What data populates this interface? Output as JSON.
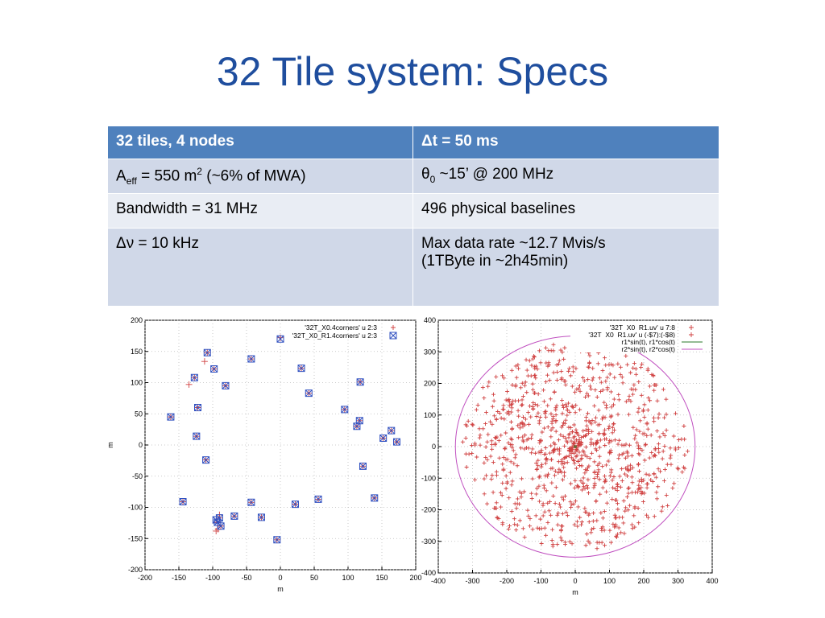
{
  "title": "32 Tile system: Specs",
  "table": {
    "rows": [
      [
        "32 tiles, 4 nodes",
        "Δt = 50 ms"
      ],
      [
        "A",
        "eff",
        " = 550 m",
        "2",
        " (~6% of MWA)",
        "θ",
        "0",
        " ~15’ @ 200 MHz"
      ],
      [
        "Bandwidth = 31 MHz",
        "496 physical baselines"
      ],
      [
        "Δν = 10 kHz",
        "Max data rate ~12.7 Mvis/s",
        "(1TByte in ~2h45min)"
      ]
    ]
  },
  "chart_data": [
    {
      "type": "scatter",
      "xlabel": "m",
      "ylabel": "m",
      "xlim": [
        -200,
        200
      ],
      "ylim": [
        -200,
        200
      ],
      "xticks": [
        -200,
        -150,
        -100,
        -50,
        0,
        50,
        100,
        150,
        200
      ],
      "yticks": [
        -200,
        -150,
        -100,
        -50,
        0,
        50,
        100,
        150,
        200
      ],
      "xtick_labels": [
        "-200",
        "-150",
        "-100",
        "-50",
        "0",
        "50",
        "100",
        "150",
        "200"
      ],
      "ytick_labels": [
        "-200",
        "-150",
        "-100",
        "-50",
        "0",
        "50",
        "100",
        "150",
        "200"
      ],
      "grid": true,
      "legend_position": "top-right",
      "series": [
        {
          "name": "'32T_X0.4corners' u 2:3",
          "color": "#d04040",
          "marker": "plus",
          "x": [
            -162,
            -144,
            -127,
            -122,
            -124,
            -110,
            -108,
            -98,
            -81,
            -43,
            -93,
            -90,
            -88,
            -95,
            -68,
            -43,
            -28,
            -5,
            0,
            22,
            31,
            42,
            56,
            95,
            113,
            117,
            122,
            139,
            118,
            152,
            164,
            172,
            -112,
            -135,
            -92,
            -90
          ],
          "y": [
            45,
            -91,
            108,
            60,
            14,
            -24,
            148,
            122,
            95,
            138,
            -124,
            -117,
            -130,
            -138,
            -114,
            -92,
            -116,
            -152,
            172,
            -95,
            123,
            83,
            -87,
            57,
            30,
            39,
            -34,
            -85,
            101,
            11,
            23,
            5,
            134,
            97,
            -135,
            -112
          ]
        },
        {
          "name": "'32T_X0_R1.4corners' u 2:3",
          "color": "#3050c0",
          "marker": "box-x",
          "x": [
            -162,
            -144,
            -127,
            -122,
            -124,
            -110,
            -108,
            -98,
            -81,
            -43,
            -93,
            -90,
            -88,
            -95,
            -68,
            -43,
            -28,
            -5,
            0,
            22,
            31,
            42,
            56,
            95,
            113,
            117,
            122,
            139,
            118,
            152,
            164,
            172
          ],
          "y": [
            45,
            -91,
            108,
            60,
            14,
            -24,
            148,
            122,
            95,
            138,
            -124,
            -117,
            -130,
            -120,
            -114,
            -92,
            -116,
            -152,
            170,
            -95,
            123,
            83,
            -87,
            57,
            30,
            39,
            -34,
            -85,
            101,
            11,
            23,
            5
          ]
        }
      ]
    },
    {
      "type": "scatter",
      "xlabel": "m",
      "ylabel": "",
      "xlim": [
        -400,
        400
      ],
      "ylim": [
        -400,
        400
      ],
      "xticks": [
        -400,
        -300,
        -200,
        -100,
        0,
        100,
        200,
        300,
        400
      ],
      "yticks": [
        -400,
        -300,
        -200,
        -100,
        0,
        100,
        200,
        300,
        400
      ],
      "xtick_labels": [
        "-400",
        "-300",
        "-200",
        "-100",
        "0",
        "100",
        "200",
        "300",
        "400"
      ],
      "ytick_labels": [
        "-400",
        "-300",
        "-200",
        "-100",
        "0",
        "100",
        "200",
        "300",
        "400"
      ],
      "grid": true,
      "legend_position": "top-right",
      "uv_points_count": 992,
      "uv_points_extent": 330,
      "series": [
        {
          "name": "'32T_X0_R1.uv' u 7:8",
          "color": "#d04040",
          "marker": "plus"
        },
        {
          "name": "'32T_X0_R1.uv' u (-$7):(-$8)",
          "color": "#d04040",
          "marker": "plus"
        },
        {
          "name": "r1*sin(t), r1*cos(t)",
          "color": "#2a7a2a",
          "marker": "line",
          "radius": 3
        },
        {
          "name": "r2*sin(t), r2*cos(t)",
          "color": "#c050c0",
          "marker": "line",
          "radius": 350
        }
      ]
    }
  ]
}
